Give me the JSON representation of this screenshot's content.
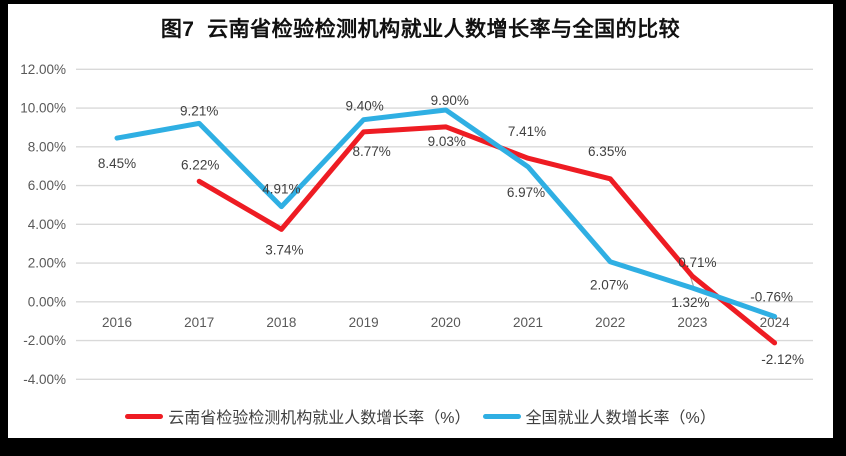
{
  "chart_data": {
    "type": "line",
    "title": "图7  云南省检验检测机构就业人数增长率与全国的比较",
    "categories": [
      "2016",
      "2017",
      "2018",
      "2019",
      "2020",
      "2021",
      "2022",
      "2023",
      "2024"
    ],
    "series": [
      {
        "name": "云南省检验检测机构就业人数增长率（%）",
        "color": "#ee1c23",
        "values": [
          null,
          6.22,
          3.74,
          8.77,
          9.03,
          7.41,
          6.35,
          1.32,
          -2.12
        ],
        "data_labels": [
          null,
          "6.22%",
          "3.74%",
          "8.77%",
          "9.03%",
          "7.41%",
          "6.35%",
          "1.32%",
          "-2.12%"
        ],
        "label_offsets": [
          null,
          [
            1,
            -12
          ],
          [
            3,
            25
          ],
          [
            8,
            24
          ],
          [
            1,
            19
          ],
          [
            -1,
            -22
          ],
          [
            -3,
            -23
          ],
          [
            -2,
            31
          ],
          [
            8,
            21
          ]
        ]
      },
      {
        "name": "全国就业人数增长率（%）",
        "color": "#2fafe3",
        "values": [
          8.45,
          9.21,
          4.91,
          9.4,
          9.9,
          6.97,
          2.07,
          0.71,
          -0.76
        ],
        "data_labels": [
          "8.45%",
          "9.21%",
          "4.91%",
          "9.40%",
          "9.90%",
          "6.97%",
          "2.07%",
          "0.71%",
          "-0.76%"
        ],
        "label_offsets": [
          [
            0,
            30
          ],
          [
            0,
            -8
          ],
          [
            0,
            -13
          ],
          [
            1,
            -9
          ],
          [
            4,
            -5
          ],
          [
            -2,
            30
          ],
          [
            -1,
            28
          ],
          [
            5,
            -21
          ],
          [
            -3,
            -15
          ]
        ]
      }
    ],
    "y_axis": {
      "values": [
        12,
        10,
        8,
        6,
        4,
        2,
        0,
        -2,
        -4
      ],
      "labels": [
        "12.00%",
        "10.00%",
        "8.00%",
        "6.00%",
        "4.00%",
        "2.00%",
        "0.00%",
        "-2.00%",
        "-4.00%"
      ],
      "min": -4,
      "max": 12
    },
    "grid": true,
    "grid_color": "#d9d9d9",
    "leader_line": {
      "series": 1,
      "index": 7,
      "color": "#a6a6a6"
    },
    "legend_position": "bottom"
  }
}
